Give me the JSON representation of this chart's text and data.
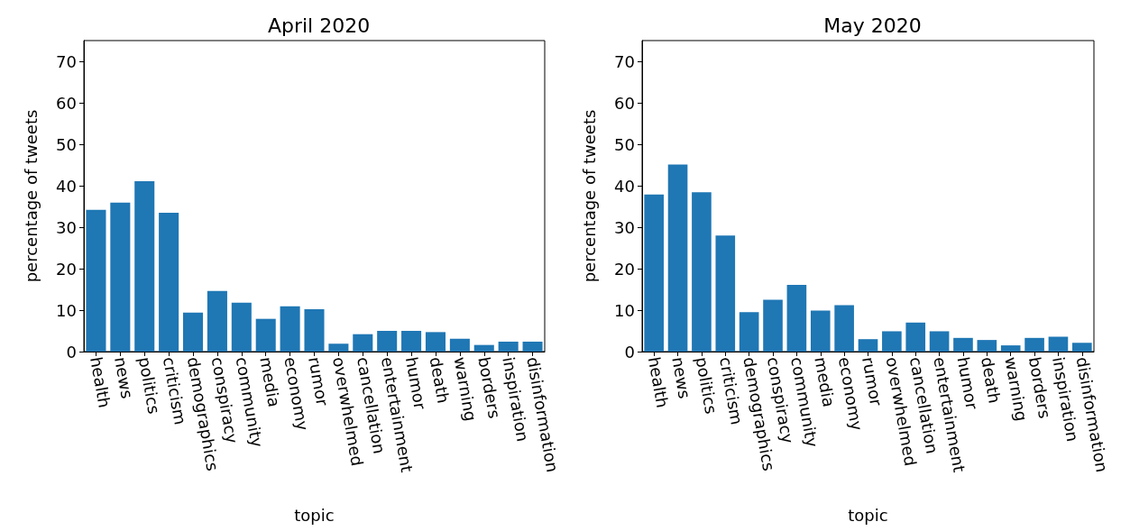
{
  "chart_data": [
    {
      "type": "bar",
      "title": "April 2020",
      "xlabel": "topic",
      "ylabel": "percentage of tweets",
      "categories": [
        "health",
        "news",
        "politics",
        "criticism",
        "demographics",
        "conspiracy",
        "community",
        "media",
        "economy",
        "rumor",
        "overwhelmed",
        "cancellation",
        "entertainment",
        "humor",
        "death",
        "warning",
        "borders",
        "inspiration",
        "disinformation"
      ],
      "values": [
        34.2,
        35.9,
        41.1,
        33.5,
        9.4,
        14.6,
        11.8,
        7.9,
        10.9,
        10.2,
        1.9,
        4.2,
        5.0,
        5.0,
        4.7,
        3.1,
        1.6,
        2.4,
        2.4
      ],
      "color": "#1f77b4",
      "ylim": [
        0,
        75
      ],
      "yticks": [
        0,
        10,
        20,
        30,
        40,
        50,
        60,
        70
      ],
      "grid": false
    },
    {
      "type": "bar",
      "title": "May 2020",
      "xlabel": "topic",
      "ylabel": "percentage of tweets",
      "categories": [
        "health",
        "news",
        "politics",
        "criticism",
        "demographics",
        "conspiracy",
        "community",
        "media",
        "economy",
        "rumor",
        "overwhelmed",
        "cancellation",
        "entertainment",
        "humor",
        "death",
        "warning",
        "borders",
        "inspiration",
        "disinformation"
      ],
      "values": [
        37.9,
        45.1,
        38.4,
        28.0,
        9.5,
        12.5,
        16.1,
        9.9,
        11.2,
        3.0,
        4.9,
        7.0,
        4.9,
        3.3,
        2.8,
        1.5,
        3.3,
        3.6,
        2.1
      ],
      "color": "#1f77b4",
      "ylim": [
        0,
        75
      ],
      "yticks": [
        0,
        10,
        20,
        30,
        40,
        50,
        60,
        70
      ],
      "grid": false
    }
  ]
}
